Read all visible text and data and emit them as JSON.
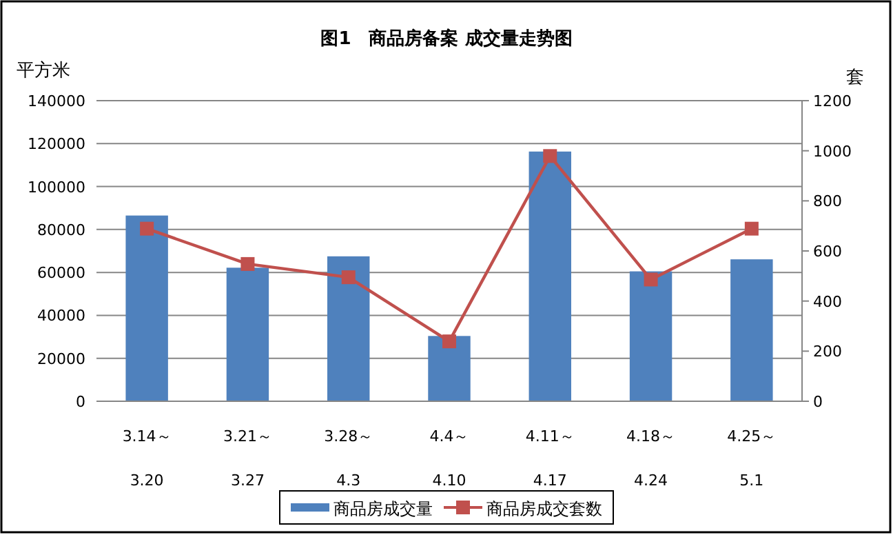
{
  "chart_data": {
    "type": "bar",
    "title": "图1　商品房备案 成交量走势图",
    "ylabel": "平方米",
    "y2label": "套",
    "categories": [
      "3.14～\n3.20",
      "3.21～\n3.27",
      "3.28～\n4.3",
      "4.4～\n4.10",
      "4.11～\n4.17",
      "4.18～\n4.24",
      "4.25～\n5.1"
    ],
    "series": [
      {
        "name": "商品房成交量",
        "color": "#4f81bd",
        "values": [
          86500,
          62200,
          67500,
          30400,
          116300,
          60500,
          66100
        ]
      },
      {
        "name": "商品房成交套数",
        "type": "line",
        "axis": "y2",
        "color": "#c0504d",
        "marker": "square",
        "values": [
          689,
          548,
          495,
          239,
          979,
          486,
          689
        ]
      }
    ],
    "ylim": [
      0,
      140000
    ],
    "yticks": [
      0,
      20000,
      40000,
      60000,
      80000,
      100000,
      120000,
      140000
    ],
    "y2lim": [
      0,
      1200
    ],
    "y2ticks": [
      0,
      200,
      400,
      600,
      800,
      1000,
      1200
    ],
    "grid": "y",
    "legend": "bottom"
  }
}
